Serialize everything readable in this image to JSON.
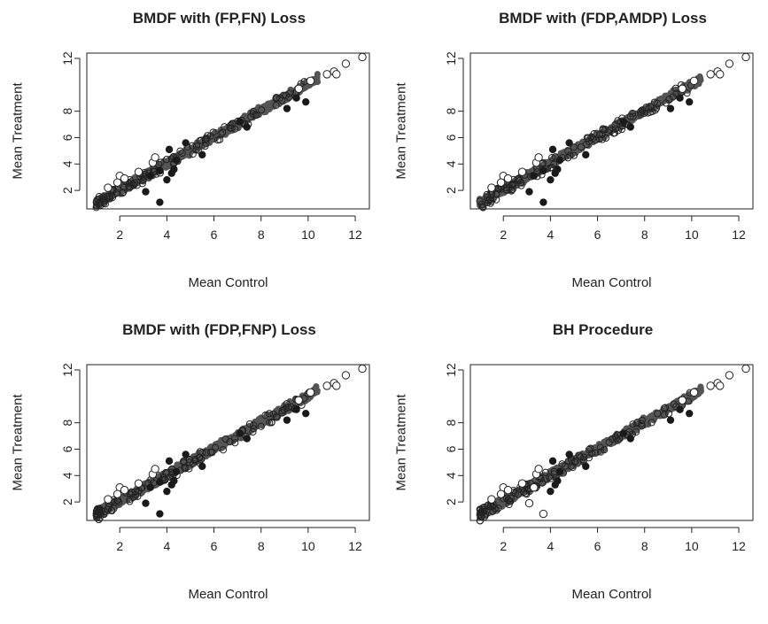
{
  "figure": {
    "colors": {
      "filled_points": "#1a1a1a",
      "gray_points": "#555555",
      "open_points": "#222222",
      "axes": "#222222"
    }
  },
  "chart_data": [
    {
      "type": "scatter",
      "title": "BMDF with (FP,FN) Loss",
      "xlabel": "Mean Control",
      "ylabel": "Mean Treatment",
      "xticks": [
        "2",
        "4",
        "6",
        "8",
        "10",
        "12"
      ],
      "yticks": [
        "2",
        "4",
        "6",
        "8",
        "12"
      ],
      "xlim": [
        0.6,
        12.6
      ],
      "ylim": [
        0.6,
        12.4
      ],
      "grid": false,
      "legend": "none",
      "series": [
        {
          "marker": "filled",
          "points": [
            [
              3.1,
              1.9
            ],
            [
              3.7,
              1.1
            ],
            [
              4.1,
              5.1
            ],
            [
              4.8,
              5.6
            ],
            [
              4.4,
              4.3
            ],
            [
              4.0,
              2.8
            ],
            [
              3.3,
              3.1
            ],
            [
              5.5,
              4.7
            ],
            [
              3.7,
              3.5
            ],
            [
              7.1,
              7.2
            ],
            [
              7.4,
              6.8
            ],
            [
              9.1,
              8.2
            ],
            [
              9.5,
              9.0
            ],
            [
              9.9,
              8.7
            ],
            [
              4.3,
              3.6
            ],
            [
              4.2,
              3.3
            ]
          ]
        },
        {
          "marker": "open",
          "points": [
            [
              2.0,
              3.1
            ],
            [
              2.2,
              2.9
            ],
            [
              1.5,
              2.2
            ],
            [
              12.3,
              12.1
            ],
            [
              11.6,
              11.6
            ],
            [
              11.1,
              11.0
            ],
            [
              11.2,
              10.8
            ],
            [
              10.1,
              10.3
            ],
            [
              10.8,
              10.8
            ],
            [
              9.6,
              9.7
            ],
            [
              3.4,
              4.1
            ],
            [
              3.5,
              4.5
            ],
            [
              2.8,
              3.4
            ],
            [
              1.9,
              2.6
            ]
          ]
        }
      ]
    },
    {
      "type": "scatter",
      "title": "BMDF with (FDP,AMDP) Loss",
      "xlabel": "Mean Control",
      "ylabel": "Mean Treatment",
      "xticks": [
        "2",
        "4",
        "6",
        "8",
        "10",
        "12"
      ],
      "yticks": [
        "2",
        "4",
        "6",
        "8",
        "12"
      ],
      "xlim": [
        0.6,
        12.6
      ],
      "ylim": [
        0.6,
        12.4
      ],
      "grid": false,
      "legend": "none",
      "series": [
        {
          "marker": "filled",
          "points": [
            [
              3.1,
              1.9
            ],
            [
              3.7,
              1.1
            ],
            [
              4.1,
              5.1
            ],
            [
              4.8,
              5.6
            ],
            [
              4.4,
              4.3
            ],
            [
              4.0,
              2.8
            ],
            [
              3.3,
              3.1
            ],
            [
              5.5,
              4.7
            ],
            [
              3.7,
              3.5
            ],
            [
              7.1,
              7.2
            ],
            [
              7.4,
              6.8
            ],
            [
              9.1,
              8.2
            ],
            [
              9.5,
              9.0
            ],
            [
              9.9,
              8.7
            ],
            [
              4.3,
              3.6
            ],
            [
              4.2,
              3.3
            ]
          ]
        },
        {
          "marker": "open",
          "points": [
            [
              2.0,
              3.1
            ],
            [
              2.2,
              2.9
            ],
            [
              1.5,
              2.2
            ],
            [
              12.3,
              12.1
            ],
            [
              11.6,
              11.6
            ],
            [
              11.1,
              11.0
            ],
            [
              11.2,
              10.8
            ],
            [
              10.1,
              10.3
            ],
            [
              10.8,
              10.8
            ],
            [
              9.6,
              9.7
            ],
            [
              3.4,
              4.1
            ],
            [
              3.5,
              4.5
            ],
            [
              2.8,
              3.4
            ],
            [
              1.9,
              2.6
            ]
          ]
        }
      ]
    },
    {
      "type": "scatter",
      "title": "BMDF with (FDP,FNP) Loss",
      "xlabel": "Mean Control",
      "ylabel": "Mean Treatment",
      "xticks": [
        "2",
        "4",
        "6",
        "8",
        "10",
        "12"
      ],
      "yticks": [
        "2",
        "4",
        "6",
        "8",
        "12"
      ],
      "xlim": [
        0.6,
        12.6
      ],
      "ylim": [
        0.6,
        12.4
      ],
      "grid": false,
      "legend": "none",
      "series": [
        {
          "marker": "filled",
          "points": [
            [
              3.1,
              1.9
            ],
            [
              3.7,
              1.1
            ],
            [
              4.1,
              5.1
            ],
            [
              4.8,
              5.6
            ],
            [
              4.4,
              4.3
            ],
            [
              4.0,
              2.8
            ],
            [
              3.3,
              3.1
            ],
            [
              5.5,
              4.7
            ],
            [
              3.7,
              3.5
            ],
            [
              7.1,
              7.2
            ],
            [
              7.4,
              6.8
            ],
            [
              9.1,
              8.2
            ],
            [
              9.5,
              9.0
            ],
            [
              9.9,
              8.7
            ],
            [
              4.3,
              3.6
            ],
            [
              4.2,
              3.3
            ]
          ]
        },
        {
          "marker": "open",
          "points": [
            [
              2.0,
              3.1
            ],
            [
              2.2,
              2.9
            ],
            [
              1.5,
              2.2
            ],
            [
              12.3,
              12.1
            ],
            [
              11.6,
              11.6
            ],
            [
              11.1,
              11.0
            ],
            [
              11.2,
              10.8
            ],
            [
              10.1,
              10.3
            ],
            [
              10.8,
              10.8
            ],
            [
              9.6,
              9.7
            ],
            [
              3.4,
              4.1
            ],
            [
              3.5,
              4.5
            ],
            [
              2.8,
              3.4
            ],
            [
              1.9,
              2.6
            ]
          ]
        }
      ]
    },
    {
      "type": "scatter",
      "title": "BH Procedure",
      "xlabel": "Mean Control",
      "ylabel": "Mean Treatment",
      "xticks": [
        "2",
        "4",
        "6",
        "8",
        "10",
        "12"
      ],
      "yticks": [
        "2",
        "4",
        "6",
        "8",
        "12"
      ],
      "xlim": [
        0.6,
        12.6
      ],
      "ylim": [
        0.6,
        12.4
      ],
      "grid": false,
      "legend": "none",
      "series": [
        {
          "marker": "filled",
          "points": [
            [
              4.1,
              5.1
            ],
            [
              4.8,
              5.6
            ],
            [
              4.4,
              4.3
            ],
            [
              4.0,
              2.8
            ],
            [
              5.5,
              4.7
            ],
            [
              7.1,
              7.2
            ],
            [
              7.4,
              6.8
            ],
            [
              9.1,
              8.2
            ],
            [
              9.5,
              9.0
            ],
            [
              9.9,
              8.7
            ],
            [
              4.3,
              3.6
            ],
            [
              4.2,
              3.3
            ]
          ]
        },
        {
          "marker": "open",
          "points": [
            [
              2.0,
              3.1
            ],
            [
              2.2,
              2.9
            ],
            [
              1.5,
              2.2
            ],
            [
              3.1,
              1.9
            ],
            [
              3.7,
              1.1
            ],
            [
              3.3,
              3.1
            ],
            [
              12.3,
              12.1
            ],
            [
              11.6,
              11.6
            ],
            [
              11.1,
              11.0
            ],
            [
              11.2,
              10.8
            ],
            [
              10.1,
              10.3
            ],
            [
              10.8,
              10.8
            ],
            [
              9.6,
              9.7
            ],
            [
              3.4,
              4.1
            ],
            [
              3.5,
              4.5
            ],
            [
              2.8,
              3.4
            ],
            [
              1.9,
              2.6
            ]
          ]
        }
      ]
    }
  ]
}
